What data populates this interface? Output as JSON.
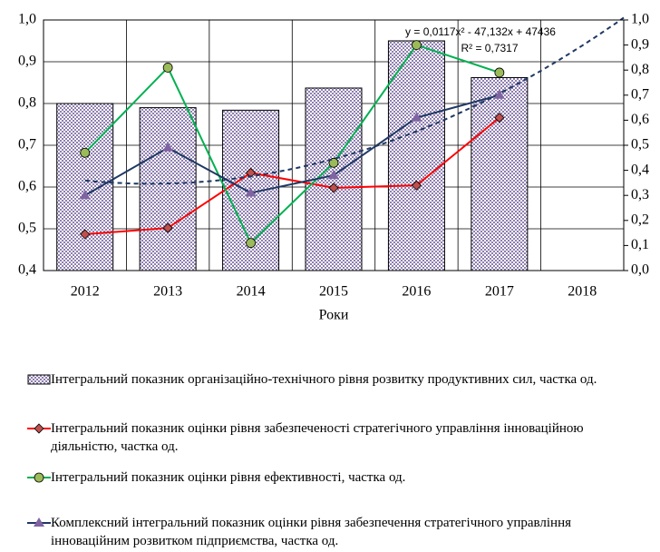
{
  "chart_data": {
    "type": "bar-line",
    "x_label": "Роки",
    "categories": [
      "2012",
      "2013",
      "2014",
      "2015",
      "2016",
      "2017",
      "2018"
    ],
    "ylim": [
      0.4,
      1.0
    ],
    "yticks": [
      {
        "value": 0.4,
        "label": "0,4"
      },
      {
        "value": 0.5,
        "label": "0,5"
      },
      {
        "value": 0.6,
        "label": "0,6"
      },
      {
        "value": 0.7,
        "label": "0,7"
      },
      {
        "value": 0.8,
        "label": "0,8"
      },
      {
        "value": 0.9,
        "label": "0,9"
      },
      {
        "value": 1.0,
        "label": "1,0"
      }
    ],
    "y2lim": [
      0.0,
      1.0
    ],
    "y2ticks": [
      {
        "value": 0.0,
        "label": "0,0"
      },
      {
        "value": 0.1,
        "label": "0,1"
      },
      {
        "value": 0.2,
        "label": "0,2"
      },
      {
        "value": 0.3,
        "label": "0,3"
      },
      {
        "value": 0.4,
        "label": "0,4"
      },
      {
        "value": 0.5,
        "label": "0,5"
      },
      {
        "value": 0.6,
        "label": "0,6"
      },
      {
        "value": 0.7,
        "label": "0,7"
      },
      {
        "value": 0.8,
        "label": "0,8"
      },
      {
        "value": 0.9,
        "label": "0,9"
      },
      {
        "value": 1.0,
        "label": "1,0"
      }
    ],
    "grid": true,
    "annotations": [
      "y = 0,0117x² - 47,132x + 47436",
      "R² = 0,7317"
    ],
    "series": [
      {
        "name": "Інтегральний показник організаційно-технічного рівня розвитку продуктивних сил, частка од.",
        "kind": "bar",
        "color": "#8e7fb0",
        "values": [
          0.8,
          0.79,
          0.784,
          0.837,
          0.95,
          0.862,
          null
        ]
      },
      {
        "name": "Інтегральний показник оцінки рівня забезпеченості стратегічного управління інноваційною діяльністю, частка од.",
        "kind": "line",
        "axis": "y2",
        "color": "#ff0000",
        "marker_color": "#c0504d",
        "marker": "diamond",
        "values": [
          0.145,
          0.17,
          0.39,
          0.33,
          0.34,
          0.61,
          null
        ]
      },
      {
        "name": "Інтегральний показник оцінки рівня ефективності, частка од.",
        "kind": "line",
        "axis": "y2",
        "color": "#00b050",
        "marker_color": "#9bbb59",
        "marker": "circle",
        "values": [
          0.47,
          0.81,
          0.11,
          0.43,
          0.9,
          0.79,
          null
        ]
      },
      {
        "name": "Комплексний інтегральний показник оцінки рівня забезпечення стратегічного управління інноваційним розвитком підприємства, частка од.",
        "kind": "line",
        "axis": "y2",
        "color": "#1f3864",
        "marker_color": "#8064a2",
        "marker": "triangle",
        "trendline": true,
        "values": [
          0.3,
          0.49,
          0.31,
          0.38,
          0.61,
          0.7,
          null
        ]
      }
    ]
  }
}
